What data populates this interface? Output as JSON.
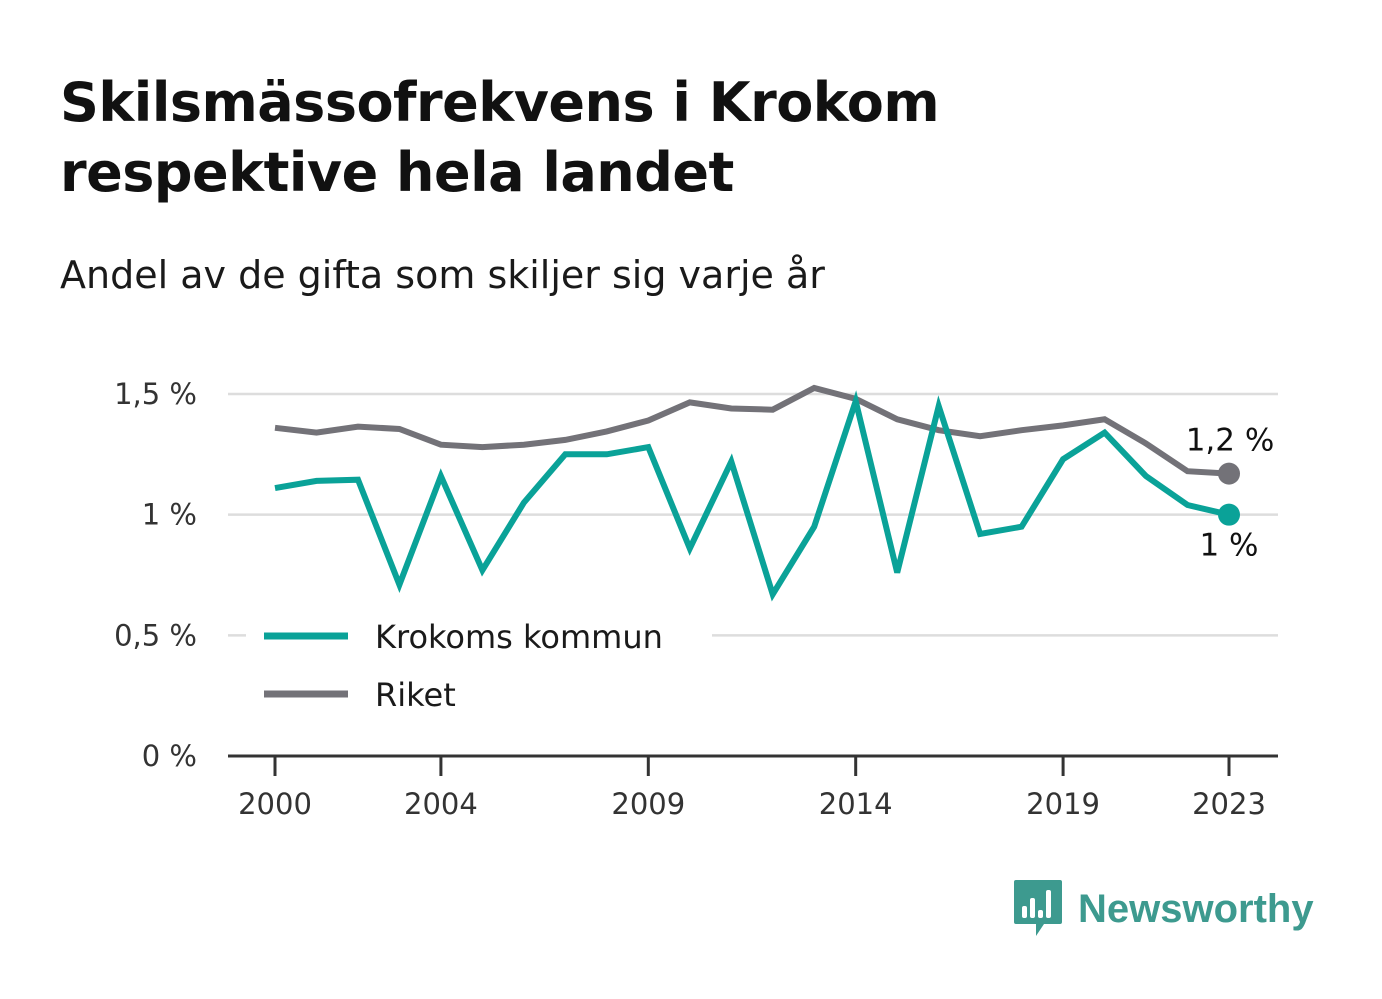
{
  "title": "Skilsmässofrekvens i Krokom respektive hela landet",
  "subtitle": "Andel av de gifta som skiljer sig varje år",
  "brand": {
    "name": "Newsworthy",
    "icon": "newsworthy-logo-icon",
    "color": "#3d9a8f"
  },
  "chart_data": {
    "type": "line",
    "x": [
      2000,
      2001,
      2002,
      2003,
      2004,
      2005,
      2006,
      2007,
      2008,
      2009,
      2010,
      2011,
      2012,
      2013,
      2014,
      2015,
      2016,
      2017,
      2018,
      2019,
      2020,
      2021,
      2022,
      2023
    ],
    "x_ticks": [
      2000,
      2004,
      2009,
      2014,
      2019,
      2023
    ],
    "x_tick_labels": [
      "2000",
      "2004",
      "2009",
      "2014",
      "2019",
      "2023"
    ],
    "y_ticks": [
      0,
      0.5,
      1,
      1.5
    ],
    "y_tick_labels": [
      "0 %",
      "0,5 %",
      "1 %",
      "1,5 %"
    ],
    "ylim": [
      0,
      1.5
    ],
    "grid": true,
    "legend_position": "bottom-left",
    "series": [
      {
        "name": "Krokoms kommun",
        "color": "#0aa298",
        "end_label": "1 %",
        "values": [
          1.11,
          1.14,
          1.145,
          0.71,
          1.16,
          0.77,
          1.05,
          1.25,
          1.25,
          1.28,
          0.86,
          1.22,
          0.67,
          0.95,
          1.47,
          0.76,
          1.45,
          0.92,
          0.95,
          1.23,
          1.34,
          1.16,
          1.04,
          1.0
        ]
      },
      {
        "name": "Riket",
        "color": "#737278",
        "end_label": "1,2 %",
        "values": [
          1.36,
          1.34,
          1.365,
          1.355,
          1.29,
          1.28,
          1.29,
          1.31,
          1.345,
          1.39,
          1.465,
          1.44,
          1.435,
          1.525,
          1.48,
          1.395,
          1.35,
          1.325,
          1.35,
          1.37,
          1.395,
          1.295,
          1.18,
          1.17
        ]
      }
    ]
  }
}
